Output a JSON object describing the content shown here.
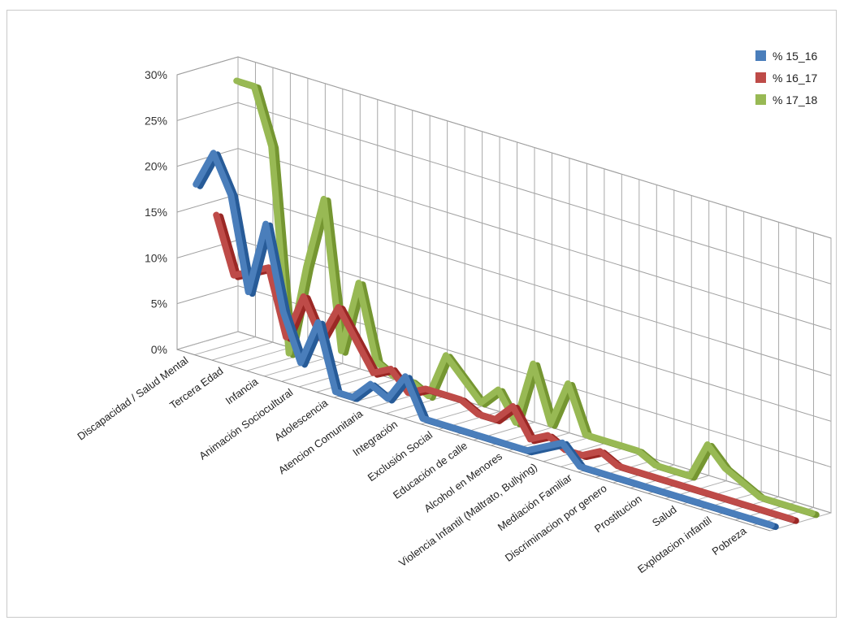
{
  "chart_data": {
    "type": "line",
    "title": "",
    "xlabel": "",
    "ylabel": "",
    "ylim": [
      0,
      30
    ],
    "y_ticks": [
      "0%",
      "5%",
      "10%",
      "15%",
      "20%",
      "25%",
      "30%"
    ],
    "grid": true,
    "legend_position": "top-right",
    "categories": [
      "Discapacidad / Salud Mental",
      "",
      "Tercera Edad",
      "",
      "Infancia",
      "",
      "Animación Sociocultural",
      "",
      "Adolescencia",
      "",
      "Atencion Comunitaria",
      "",
      "Integración",
      "",
      "Exclusión Social",
      "",
      "Educación de calle",
      "",
      "Alcohol en Menores",
      "",
      "Violencia Infantil (Maltrato, Bullying)",
      "",
      "Mediación Familiar",
      "",
      "Discriminacion por genero",
      "",
      "Prostitucion",
      "",
      "Salud",
      "",
      "Explotacion infantil",
      "",
      "Pobreza",
      ""
    ],
    "series": [
      {
        "name": "% 15_16",
        "color": "#4a7ebb",
        "values": [
          18,
          22,
          18,
          8,
          16,
          7,
          2,
          7,
          0,
          0,
          2,
          1,
          4,
          0,
          0,
          0,
          0,
          0,
          0,
          0,
          1,
          2,
          0,
          0,
          0,
          0,
          0,
          0,
          0,
          0,
          0,
          0,
          0,
          0
        ]
      },
      {
        "name": "% 16_17",
        "color": "#be4b48",
        "values": [
          14,
          8,
          9,
          10,
          3,
          8,
          4,
          8,
          5,
          2,
          3,
          1,
          2,
          2,
          2,
          1,
          1,
          3,
          0,
          1,
          0,
          0,
          1,
          0,
          0,
          0,
          0,
          0,
          0,
          0,
          0,
          0,
          0,
          0
        ]
      },
      {
        "name": "% 17_18",
        "color": "#98b954",
        "values": [
          28,
          28,
          22,
          0,
          10,
          18,
          2,
          10,
          2,
          1,
          1,
          0,
          5,
          3,
          1,
          3,
          0,
          7,
          1,
          6,
          1,
          1,
          1,
          1,
          0,
          0,
          0,
          4,
          2,
          1,
          0,
          0,
          0,
          0
        ]
      }
    ]
  }
}
